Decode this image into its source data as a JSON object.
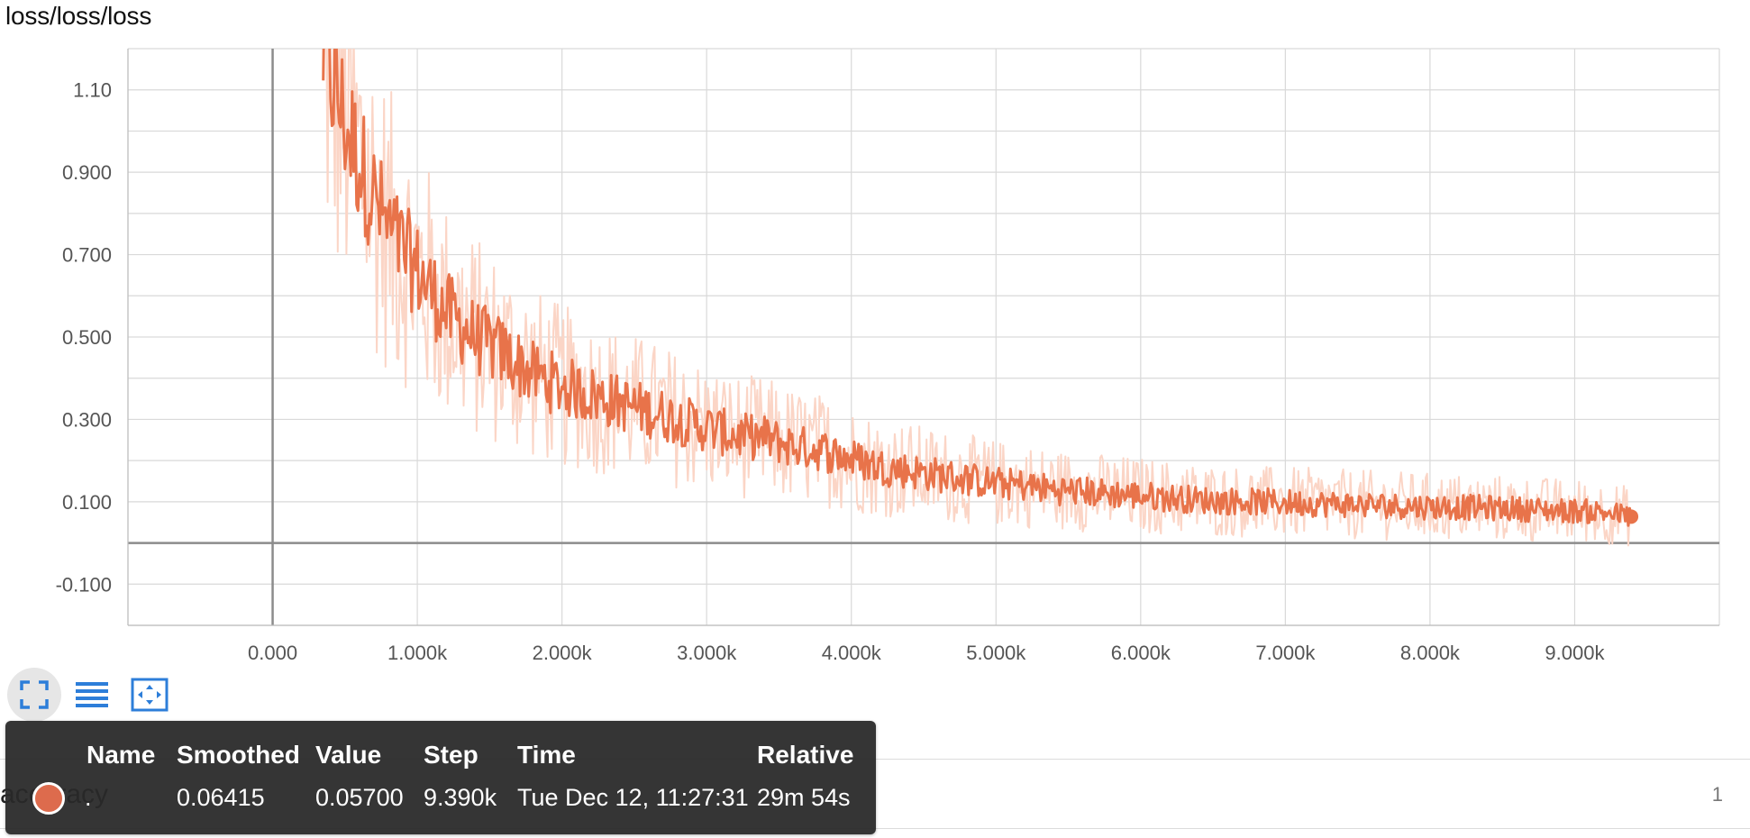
{
  "card": {
    "title": "loss/loss/loss"
  },
  "chart_data": {
    "type": "line",
    "title": "loss/loss/loss",
    "xlabel": "",
    "ylabel": "",
    "xlim": [
      -1000,
      10000
    ],
    "ylim": [
      -0.2,
      1.2
    ],
    "x_ticks": [
      0,
      1000,
      2000,
      3000,
      4000,
      5000,
      6000,
      7000,
      8000,
      9000
    ],
    "x_tick_labels": [
      "0.000",
      "1.000k",
      "2.000k",
      "3.000k",
      "4.000k",
      "5.000k",
      "6.000k",
      "7.000k",
      "8.000k",
      "9.000k"
    ],
    "y_ticks": [
      -0.1,
      0.1,
      0.3,
      0.5,
      0.7,
      0.9,
      1.1
    ],
    "y_tick_labels": [
      "-0.100",
      "0.100",
      "0.300",
      "0.500",
      "0.700",
      "0.900",
      "1.10"
    ],
    "grid": true,
    "series": [
      {
        "color": "#e8734a",
        "raw_color": "#fbd5c6",
        "x": [
          350,
          500,
          650,
          800,
          1000,
          1200,
          1400,
          1600,
          1800,
          2000,
          2200,
          2400,
          2600,
          2800,
          3000,
          3200,
          3400,
          3600,
          3800,
          4000,
          4200,
          4400,
          4600,
          4800,
          5000,
          5200,
          5400,
          5600,
          5800,
          6000,
          6200,
          6400,
          6600,
          6800,
          7000,
          7200,
          7400,
          7600,
          7800,
          8000,
          8200,
          8400,
          8600,
          8800,
          9000,
          9200,
          9390
        ],
        "y": [
          1.2,
          1.02,
          0.88,
          0.76,
          0.66,
          0.56,
          0.5,
          0.46,
          0.41,
          0.38,
          0.36,
          0.34,
          0.32,
          0.3,
          0.28,
          0.26,
          0.255,
          0.235,
          0.225,
          0.205,
          0.185,
          0.175,
          0.165,
          0.155,
          0.145,
          0.14,
          0.13,
          0.125,
          0.12,
          0.115,
          0.11,
          0.105,
          0.102,
          0.1,
          0.098,
          0.096,
          0.094,
          0.092,
          0.09,
          0.088,
          0.087,
          0.085,
          0.083,
          0.08,
          0.078,
          0.075,
          0.064
        ]
      }
    ]
  },
  "tooltip": {
    "headers": {
      "name": "Name",
      "smoothed": "Smoothed",
      "value": "Value",
      "step": "Step",
      "time": "Time",
      "relative": "Relative"
    },
    "row": {
      "name": ".",
      "smoothed": "0.06415",
      "value": "0.05700",
      "step": "9.390k",
      "time": "Tue Dec 12, 11:27:31",
      "relative": "29m 54s"
    }
  },
  "next_card": {
    "title": "accuracy",
    "count": "1"
  },
  "icons": [
    "expand-icon",
    "data-table-icon",
    "fit-domain-icon"
  ]
}
